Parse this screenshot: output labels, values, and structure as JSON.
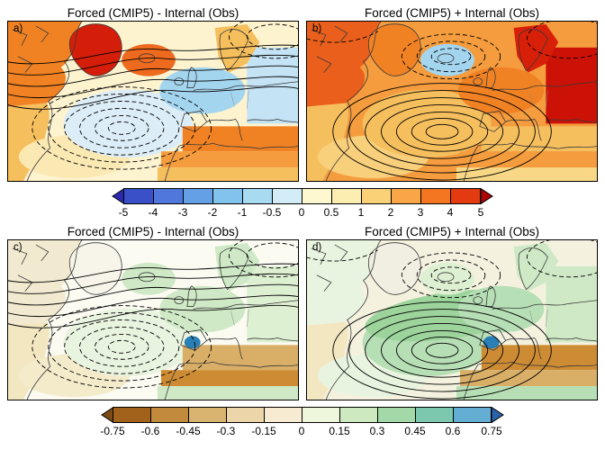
{
  "panels": [
    {
      "label": "a)",
      "title": "Forced (CMIP5) - Internal (Obs)",
      "contour_set": "diff",
      "regions": {
        "base": "#fdf3cf",
        "na_north": "#f08224",
        "na_south": "#f6bf5e",
        "greenland": "#d41e0a",
        "iceland_area": "#ee6a1e",
        "natl_mid": "#dcedf7",
        "natl_subtrop": "#fbe9b4",
        "atl_band": "none",
        "europe_east": "#c4e3f4",
        "europe_nw": "#a4d5ef",
        "scandinavia": "#f6bf5e",
        "med": "#f08224",
        "africa_n": "#f49c3e",
        "africa_s": "#f6bf5e",
        "iberia_spot": "none"
      }
    },
    {
      "label": "b)",
      "title": "Forced (CMIP5) + Internal (Obs)",
      "contour_set": "sum",
      "regions": {
        "base": "#f49c3e",
        "na_north": "#ea5f1c",
        "na_south": "#f6bf5e",
        "greenland": "#f08224",
        "iceland_area": "#a4d5ef",
        "natl_mid": "#f6bf5e",
        "natl_subtrop": "#f8cf7a",
        "atl_band": "none",
        "europe_east": "#cc1206",
        "europe_nw": "#f08224",
        "scandinavia": "#d81f08",
        "med": "#f6bf5e",
        "africa_n": "#f49c3e",
        "africa_s": "#f8d886",
        "iberia_spot": "none"
      }
    },
    {
      "label": "c)",
      "title": "Forced (CMIP5) - Internal (Obs)",
      "contour_set": "diff",
      "regions": {
        "base": "#fbfbf2",
        "na_north": "#f2ead0",
        "na_south": "#f3e7c2",
        "greenland": "#f7f5ea",
        "iceland_area": "#cfe9c6",
        "natl_mid": "#e9f4e0",
        "natl_subtrop": "#f4ebcb",
        "atl_band": "none",
        "europe_east": "#def0d2",
        "europe_nw": "#cfe9c6",
        "scandinavia": "#cfe9c6",
        "med": "#d9af68",
        "africa_n": "#cd8c34",
        "africa_s": "#cfe9c6",
        "iberia_spot": "#2a7fb5"
      }
    },
    {
      "label": "d)",
      "title": "Forced (CMIP5) + Internal (Obs)",
      "contour_set": "sum",
      "regions": {
        "base": "#f4f2df",
        "na_north": "#e9f4e0",
        "na_south": "#f3e7c2",
        "greenland": "#f1efe2",
        "iceland_area": "#def0d2",
        "natl_mid": "#b7dfb6",
        "natl_subtrop": "#e9f4e0",
        "atl_band": "#9cd49c",
        "europe_east": "#cfe9c6",
        "europe_nw": "#b7dfb6",
        "scandinavia": "#cfe9c6",
        "med": "#cd8c34",
        "africa_n": "#d9af68",
        "africa_s": "#b7dfb6",
        "iberia_spot": "#2a7fb5"
      }
    }
  ],
  "colorbars": [
    {
      "name": "upper",
      "ticks": [
        "-5",
        "-4",
        "-3",
        "-2",
        "-1",
        "-0.5",
        "0",
        "0.5",
        "1",
        "2",
        "3",
        "4",
        "5"
      ],
      "segment_colors": [
        "#3a50c8",
        "#5078dc",
        "#64a0e6",
        "#82c3ee",
        "#a8daf2",
        "#d2edf8",
        "#fdf8cf",
        "#fcedb0",
        "#fbd178",
        "#f9a648",
        "#f57620",
        "#e33a10"
      ],
      "arrow_left": "#2a2ab0",
      "arrow_right": "#ae0404"
    },
    {
      "name": "lower",
      "ticks": [
        "-0.75",
        "-0.6",
        "-0.45",
        "-0.3",
        "-0.15",
        "0",
        "0.15",
        "0.3",
        "0.45",
        "0.6",
        "0.75"
      ],
      "segment_colors": [
        "#a3621c",
        "#c28a3c",
        "#d9b370",
        "#ecd5a8",
        "#f7ecd2",
        "#eef6dc",
        "#cde9c0",
        "#a3d9a8",
        "#7cc8ae",
        "#63aed2"
      ],
      "arrow_left": "#7c4a14",
      "arrow_right": "#2b62a8"
    }
  ],
  "chart_data": {
    "type": "heatmap",
    "description": "Four-panel North Atlantic / European map figure: shaded anomaly fields with overlaid black contours (solid and dashed); arrowed colorbars below each row of panels.",
    "panels": [
      {
        "id": "a)",
        "title": "Forced (CMIP5) - Internal (Obs)",
        "colorbar": "upper"
      },
      {
        "id": "b)",
        "title": "Forced (CMIP5) + Internal (Obs)",
        "colorbar": "upper"
      },
      {
        "id": "c)",
        "title": "Forced (CMIP5) - Internal (Obs)",
        "colorbar": "lower"
      },
      {
        "id": "d)",
        "title": "Forced (CMIP5) + Internal (Obs)",
        "colorbar": "lower"
      }
    ],
    "colorbars": [
      {
        "id": "upper",
        "tick_values": [
          -5,
          -4,
          -3,
          -2,
          -1,
          -0.5,
          0,
          0.5,
          1,
          2,
          3,
          4,
          5
        ],
        "palette": "blue to white/yellow to red with arrow ends"
      },
      {
        "id": "lower",
        "tick_values": [
          -0.75,
          -0.6,
          -0.45,
          -0.3,
          -0.15,
          0,
          0.15,
          0.3,
          0.45,
          0.6,
          0.75
        ],
        "palette": "brown to cream to green/blue with arrow ends"
      }
    ]
  }
}
